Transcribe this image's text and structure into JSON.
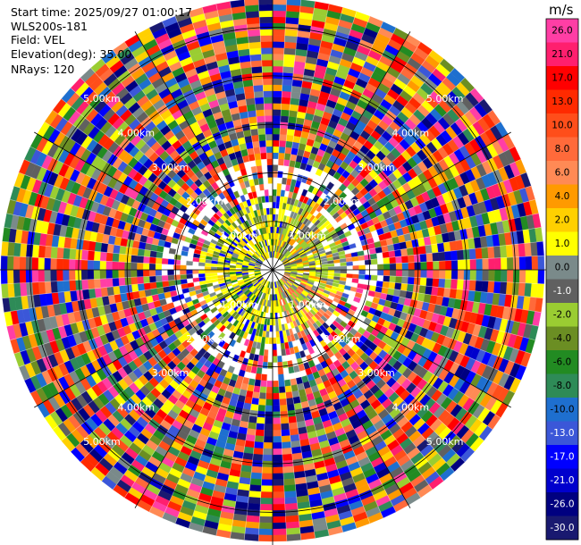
{
  "info": {
    "start_time": "Start time: 2025/09/27 01:00:17",
    "instrument": "WLS200s-181",
    "field": "Field: VEL",
    "elevation": "Elevation(deg): 35.00",
    "nrays": "NRays: 120"
  },
  "colorbar": {
    "unit": "m/s",
    "ticks": [
      "26.0",
      "21.0",
      "17.0",
      "13.0",
      "10.0",
      "8.0",
      "6.0",
      "4.0",
      "2.0",
      "1.0",
      "0.0",
      "-1.0",
      "-2.0",
      "-4.0",
      "-6.0",
      "-8.0",
      "-10.0",
      "-13.0",
      "-17.0",
      "-21.0",
      "-26.0",
      "-30.0"
    ],
    "colors": [
      "#ff3ea5",
      "#ff1f6e",
      "#ff0000",
      "#ff2a00",
      "#ff4e1a",
      "#ff6a3a",
      "#ff8a55",
      "#ff9a00",
      "#ffd000",
      "#ffff00",
      "#7a8a8a",
      "#606060",
      "#9acd32",
      "#6b8e23",
      "#228b22",
      "#2e8b57",
      "#1e6fcf",
      "#3b57d8",
      "#0000ff",
      "#0000cd",
      "#000080",
      "#191970"
    ]
  },
  "chart_data": {
    "type": "heatmap",
    "subtype": "polar-ppi",
    "field": "VEL",
    "unit": "m/s",
    "nrays": 120,
    "elevation_deg": 35.0,
    "max_range_km": 5.6,
    "ring_labels": [
      "1.00km",
      "2.00km",
      "3.00km",
      "4.00km",
      "5.00km"
    ],
    "ring_ranges_km": [
      1,
      2,
      3,
      4,
      5
    ],
    "vmin": -30.0,
    "vmax": 26.0,
    "pattern": "low-magnitude velocities (yellow/gray/green) within ~1.5 km, noisy full-range values beyond"
  }
}
